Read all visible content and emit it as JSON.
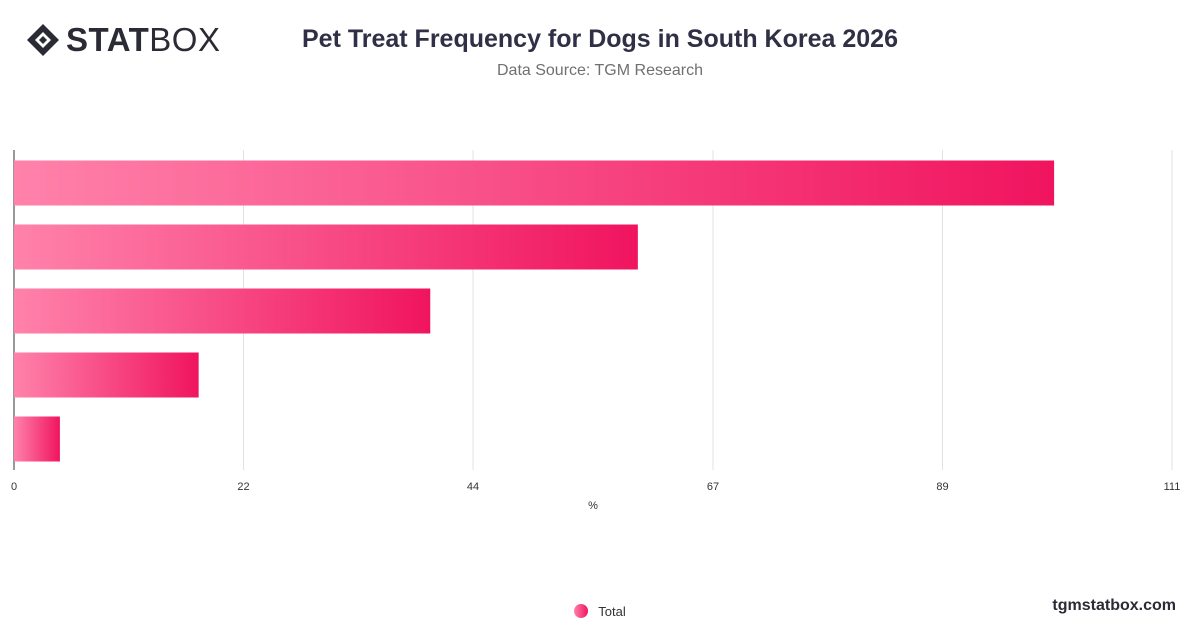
{
  "header": {
    "logo_bold": "STAT",
    "logo_light": "BOX",
    "title": "Pet Treat Frequency for Dogs in South Korea 2026",
    "subtitle": "Data Source: TGM Research"
  },
  "footer": {
    "brand": "tgmstatbox.com"
  },
  "colors": {
    "bar_light": "#ff82ab",
    "bar_dark": "#f0145f",
    "grid": "#e2e2e2",
    "axis": "#333333",
    "text": "#333333"
  },
  "chart_data": {
    "type": "bar",
    "orientation": "horizontal",
    "title": "Pet Treat Frequency for Dogs in South Korea 2026",
    "subtitle": "Data Source: TGM Research",
    "xlabel": "%",
    "ylabel": "",
    "xlim": [
      0,
      111
    ],
    "x_ticks": [
      0,
      22,
      44,
      67,
      89,
      111
    ],
    "categories": [
      "",
      "",
      "",
      "",
      ""
    ],
    "series": [
      {
        "name": "Total",
        "values": [
          99.7,
          59.8,
          39.9,
          17.7,
          4.4
        ]
      }
    ],
    "legend_position": "bottom",
    "grid": true
  }
}
